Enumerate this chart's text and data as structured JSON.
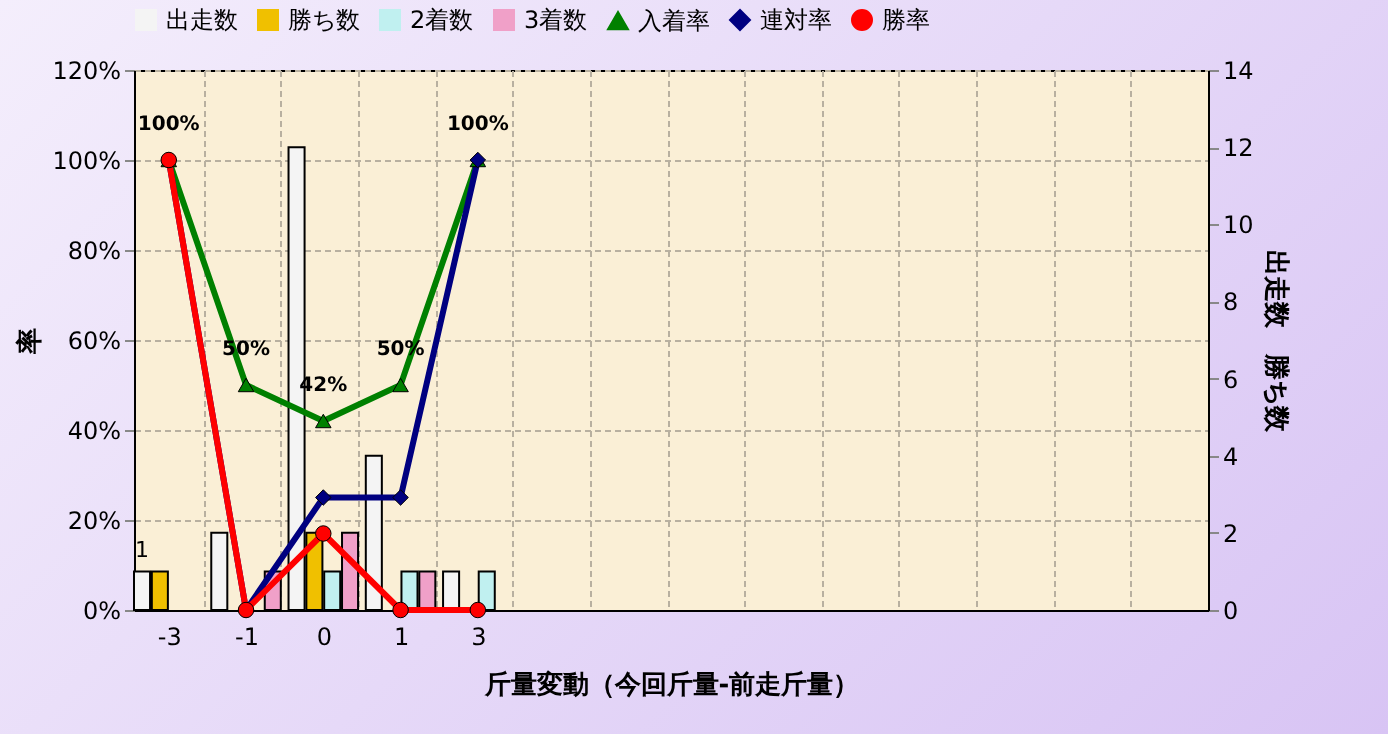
{
  "chart_data": {
    "type": "bar",
    "xlabel": "斤量変動（今回斤量-前走斤量）",
    "ylabel": "率",
    "y2label": "出走数　勝ち数",
    "categories": [
      "-3",
      "-1",
      "0",
      "1",
      "3",
      null,
      null,
      null,
      null,
      null,
      null,
      null,
      null,
      null
    ],
    "series": [
      {
        "name": "出走数",
        "axis": "y2",
        "color": "#f4f4f4",
        "values": [
          1,
          2,
          12,
          4,
          1,
          null,
          null,
          null,
          null,
          null,
          null,
          null,
          null,
          null
        ],
        "value_labels": [
          "1",
          null,
          null,
          null,
          null,
          null,
          null,
          null,
          null,
          null,
          null,
          null,
          null,
          null
        ]
      },
      {
        "name": "勝ち数",
        "axis": "y2",
        "color": "#f0c000",
        "values": [
          1,
          0,
          2,
          0,
          0,
          null,
          null,
          null,
          null,
          null,
          null,
          null,
          null,
          null
        ]
      },
      {
        "name": "2着数",
        "axis": "y2",
        "color": "#c0f0f0",
        "values": [
          0,
          0,
          1,
          1,
          1,
          null,
          null,
          null,
          null,
          null,
          null,
          null,
          null,
          null
        ]
      },
      {
        "name": "3着数",
        "axis": "y2",
        "color": "#f0a0c8",
        "values": [
          0,
          1,
          2,
          1,
          0,
          null,
          null,
          null,
          null,
          null,
          null,
          null,
          null,
          null
        ]
      },
      {
        "name": "入着率",
        "type": "line",
        "marker": "triangle",
        "color": "#008000",
        "values": [
          100,
          50,
          42,
          50,
          100,
          null,
          null,
          null,
          null,
          null,
          null,
          null,
          null,
          null
        ],
        "value_labels": [
          "100%",
          "50%",
          "42%",
          "50%",
          "100%",
          null,
          null,
          null,
          null,
          null,
          null,
          null,
          null,
          null
        ]
      },
      {
        "name": "連対率",
        "type": "line",
        "marker": "diamond",
        "color": "#000080",
        "values": [
          100,
          0,
          25,
          25,
          100,
          null,
          null,
          null,
          null,
          null,
          null,
          null,
          null,
          null
        ]
      },
      {
        "name": "勝率",
        "type": "line",
        "marker": "circle",
        "color": "#ff0000",
        "values": [
          100,
          0,
          17,
          0,
          0,
          null,
          null,
          null,
          null,
          null,
          null,
          null,
          null,
          null
        ]
      }
    ],
    "ylim": [
      0,
      120
    ],
    "yticks": [
      {
        "value": 0,
        "label": "0%"
      },
      {
        "value": 20,
        "label": "20%"
      },
      {
        "value": 40,
        "label": "40%"
      },
      {
        "value": 60,
        "label": "60%"
      },
      {
        "value": 80,
        "label": "80%"
      },
      {
        "value": 100,
        "label": "100%"
      },
      {
        "value": 120,
        "label": "120%"
      }
    ],
    "y2lim": [
      0,
      14
    ],
    "y2ticks": [
      0,
      2,
      4,
      6,
      8,
      10,
      12,
      14
    ],
    "grid": true,
    "legend": "top"
  }
}
